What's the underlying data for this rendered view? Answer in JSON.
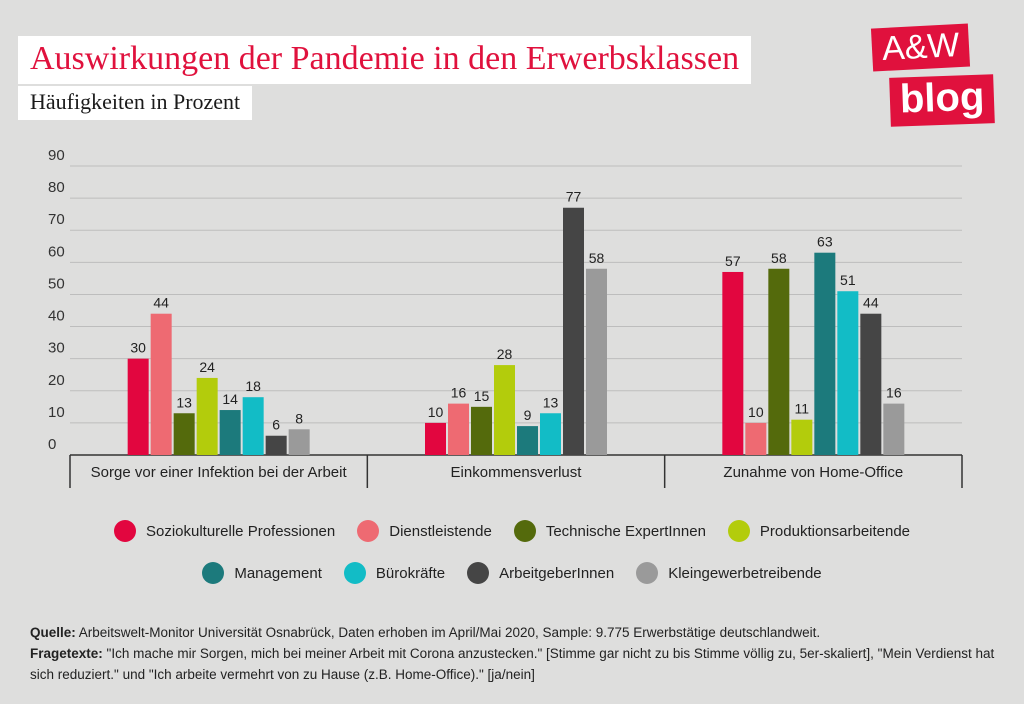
{
  "title": "Auswirkungen der Pandemie in den Erwerbsklassen",
  "subtitle": "Häufigkeiten in Prozent",
  "logo": {
    "line1": "A&W",
    "line2": "blog"
  },
  "chart_data": {
    "type": "bar",
    "categories": [
      "Sorge vor einer Infektion bei der Arbeit",
      "Einkommensverlust",
      "Zunahme von Home-Office"
    ],
    "ylim": [
      0,
      90
    ],
    "yticks": [
      0,
      10,
      20,
      30,
      40,
      50,
      60,
      70,
      80,
      90
    ],
    "grid": true,
    "legend_position": "bottom",
    "series": [
      {
        "name": "Soziokulturelle Professionen",
        "color": "#e2063f",
        "values": [
          30,
          10,
          57
        ]
      },
      {
        "name": "Dienstleistende",
        "color": "#ee6a72",
        "values": [
          44,
          16,
          10
        ]
      },
      {
        "name": "Technische ExpertInnen",
        "color": "#546a0c",
        "values": [
          13,
          15,
          58
        ]
      },
      {
        "name": "Produktionsarbeitende",
        "color": "#b3cc0c",
        "values": [
          24,
          28,
          11
        ]
      },
      {
        "name": "Management",
        "color": "#1c7a7c",
        "values": [
          14,
          9,
          63
        ]
      },
      {
        "name": "Bürokräfte",
        "color": "#12bcc6",
        "values": [
          18,
          13,
          51
        ]
      },
      {
        "name": "ArbeitgeberInnen",
        "color": "#454545",
        "values": [
          6,
          77,
          44
        ]
      },
      {
        "name": "Kleingewerbetreibende",
        "color": "#9a9a9a",
        "values": [
          8,
          58,
          16
        ]
      }
    ]
  },
  "footer": {
    "source_label": "Quelle:",
    "source_text": " Arbeitswelt-Monitor Universität Osnabrück, Daten erhoben im April/Mai 2020, Sample: 9.775 Erwerbstätige deutschlandweit.",
    "questions_label": "Fragetexte:",
    "questions_text": " \"Ich mache mir Sorgen, mich bei meiner Arbeit mit Corona anzustecken.\" [Stimme gar nicht zu bis Stimme völlig zu, 5er-skaliert], \"Mein Verdienst hat sich reduziert.\" und \"Ich arbeite vermehrt von zu Hause (z.B. Home-Office).\" [ja/nein]"
  }
}
